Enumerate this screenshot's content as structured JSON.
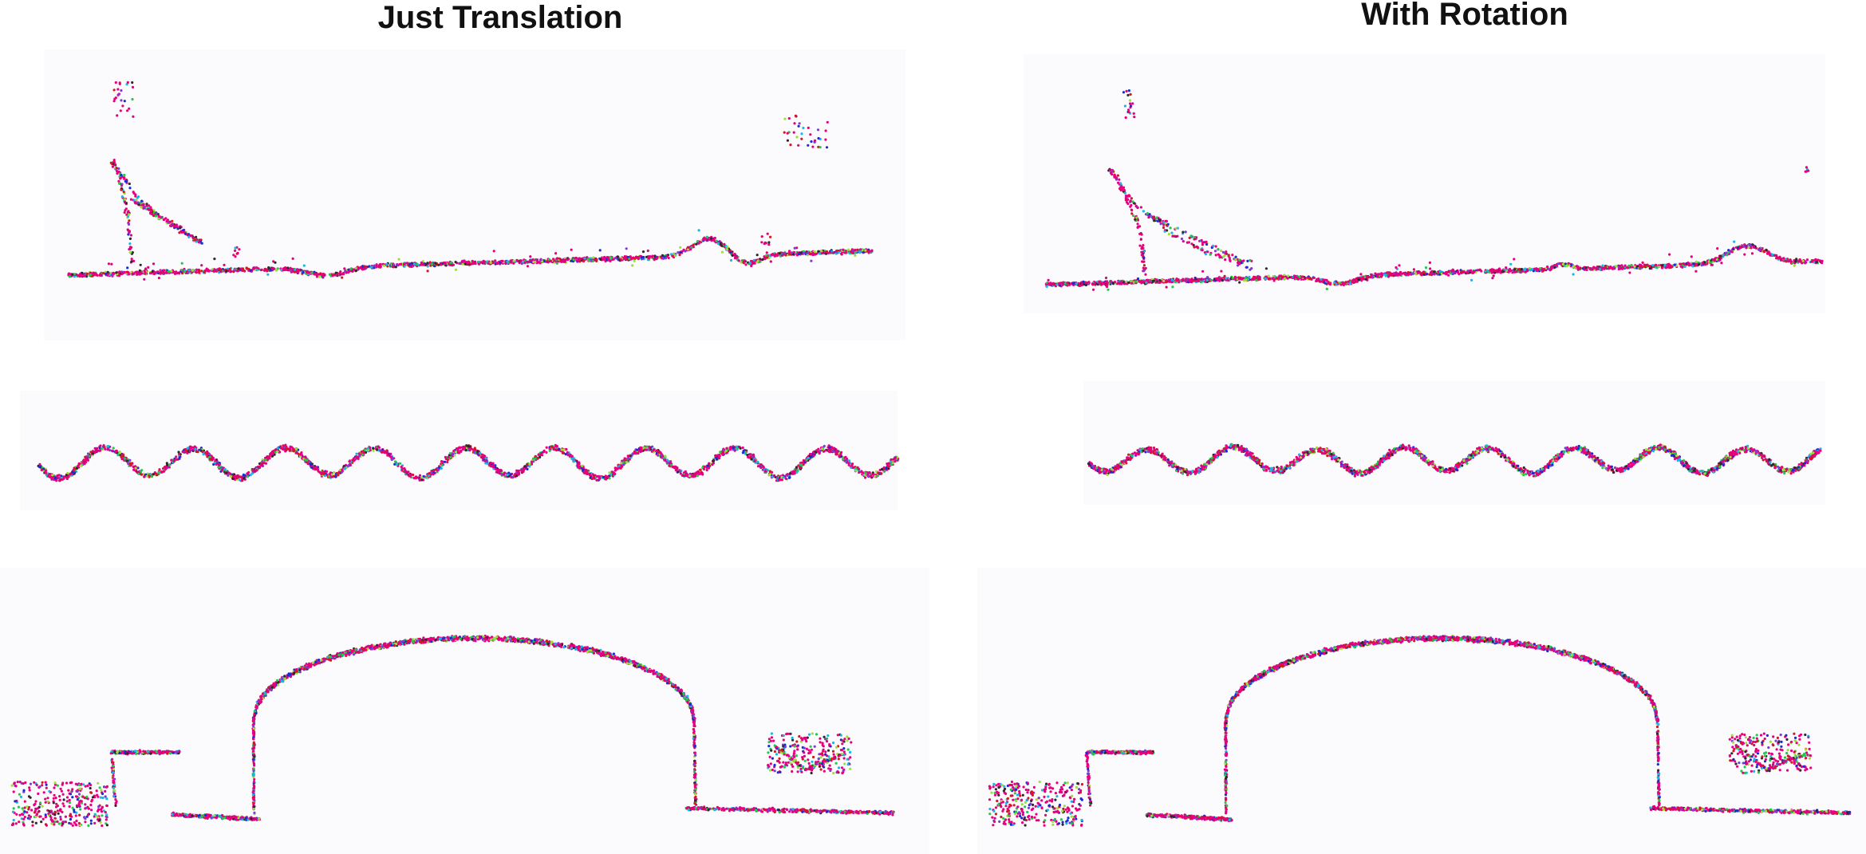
{
  "titles": {
    "left": "Just Translation",
    "right": "With Rotation"
  },
  "colors": {
    "panel_bg": "#fafafd",
    "point_colors": [
      "#e6007e",
      "#1a2bd6",
      "#18b7e8",
      "#21c84a",
      "#7a3fd1",
      "#d11a1a",
      "#2b2b2b",
      "#9be03a"
    ]
  }
}
